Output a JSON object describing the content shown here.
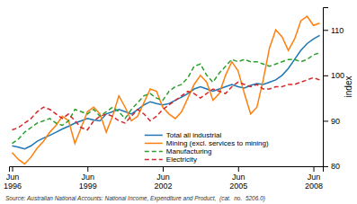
{
  "chart_data": {
    "type": "line",
    "ylabel": "index",
    "annotations": [
      "Source: Australian National Accounts: National Income, Expenditure and Product,  (cat.  no.  5206.0)"
    ],
    "categories": [
      "Jun\n1996",
      null,
      null,
      null,
      null,
      null,
      null,
      null,
      null,
      null,
      null,
      null,
      "Jun\n1999",
      null,
      null,
      null,
      null,
      null,
      null,
      null,
      null,
      null,
      null,
      null,
      "Jun\n2002",
      null,
      null,
      null,
      null,
      null,
      null,
      null,
      null,
      null,
      null,
      null,
      "Jun\n2005",
      null,
      null,
      null,
      null,
      null,
      null,
      null,
      null,
      null,
      null,
      null,
      "Jun\n2008",
      null
    ],
    "series": [
      {
        "name": "Total all industrial",
        "line_style": "solid",
        "values": [
          84.5,
          84.2,
          83.8,
          84.5,
          85.5,
          86.2,
          86.8,
          87.5,
          88.2,
          88.8,
          89.5,
          90.0,
          90.5,
          90.2,
          90.0,
          91.5,
          92.0,
          92.5,
          92.0,
          91.5,
          92.5,
          93.5,
          94.2,
          93.8,
          93.5,
          93.8,
          94.5,
          95.2,
          96.0,
          97.0,
          97.5,
          97.0,
          96.5,
          97.0,
          97.5,
          98.0,
          97.5,
          97.2,
          97.8,
          98.2,
          98.0,
          98.5,
          99.0,
          100.0,
          101.5,
          103.5,
          105.5,
          107.0,
          108.0,
          108.8
        ]
      },
      {
        "name": "Mining (excl. services to mining)",
        "line_style": "solid",
        "values": [
          83.0,
          81.5,
          80.5,
          82.0,
          84.0,
          85.5,
          87.5,
          89.0,
          91.0,
          90.0,
          85.0,
          88.5,
          92.0,
          93.0,
          91.5,
          87.5,
          91.0,
          95.5,
          93.0,
          90.0,
          91.0,
          94.0,
          97.0,
          96.5,
          93.0,
          91.5,
          90.5,
          92.0,
          95.0,
          98.0,
          100.0,
          98.5,
          94.5,
          96.0,
          100.0,
          103.0,
          101.0,
          96.0,
          91.5,
          93.0,
          99.0,
          106.0,
          110.0,
          108.5,
          105.5,
          108.0,
          112.0,
          113.0,
          111.0,
          111.5
        ]
      },
      {
        "name": "Manufacturing",
        "line_style": "dashed",
        "values": [
          85.0,
          86.0,
          87.5,
          88.5,
          89.5,
          90.0,
          90.5,
          89.5,
          89.0,
          90.0,
          92.5,
          92.0,
          91.5,
          92.5,
          91.0,
          92.0,
          93.0,
          92.0,
          90.5,
          92.5,
          94.0,
          95.5,
          96.0,
          95.0,
          94.5,
          96.5,
          97.5,
          98.0,
          99.5,
          102.0,
          102.5,
          100.0,
          98.5,
          100.5,
          102.0,
          103.5,
          103.0,
          103.5,
          103.0,
          103.0,
          102.5,
          102.0,
          102.5,
          103.0,
          103.5,
          103.5,
          103.0,
          103.5,
          104.5,
          105.0
        ]
      },
      {
        "name": "Electricity",
        "line_style": "dashed",
        "values": [
          88.0,
          88.5,
          89.5,
          90.5,
          92.0,
          93.0,
          92.5,
          91.5,
          90.5,
          91.5,
          90.0,
          88.5,
          88.0,
          90.0,
          91.0,
          91.5,
          91.0,
          90.0,
          89.5,
          91.0,
          92.5,
          91.5,
          90.0,
          91.0,
          92.5,
          93.5,
          94.5,
          95.5,
          96.5,
          96.0,
          95.0,
          96.0,
          97.0,
          96.5,
          96.0,
          97.5,
          98.5,
          98.0,
          97.5,
          98.0,
          97.0,
          97.0,
          97.5,
          97.5,
          98.0,
          98.0,
          98.5,
          99.0,
          99.5,
          99.0
        ]
      }
    ],
    "ylim": [
      80,
      115
    ],
    "yticks": [
      80,
      90,
      100,
      110
    ],
    "legend": "lower center"
  }
}
